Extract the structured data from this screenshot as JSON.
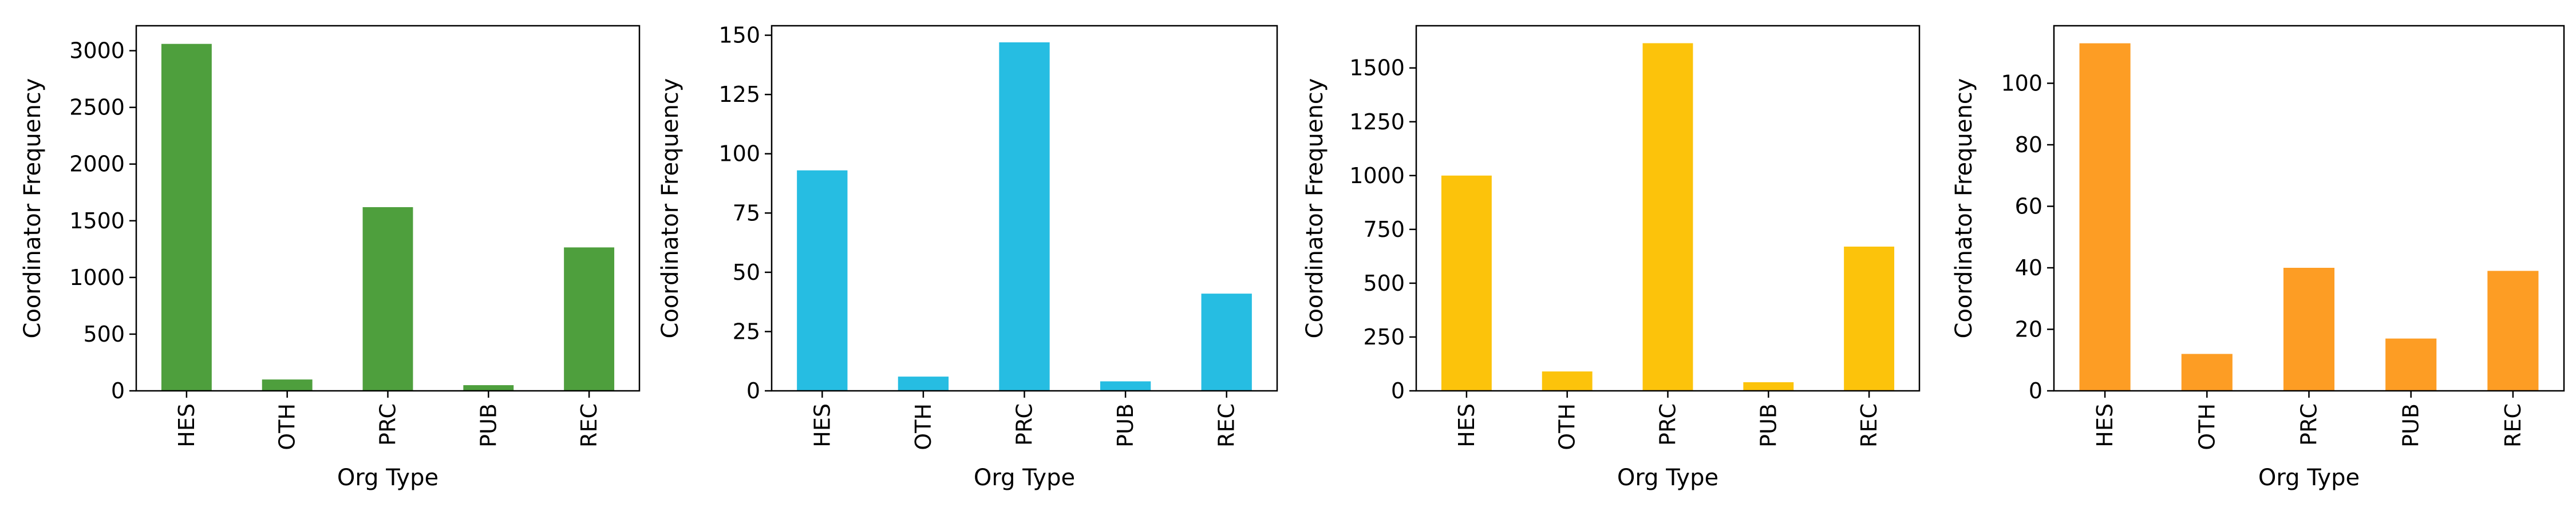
{
  "chart_data": [
    {
      "type": "bar",
      "categories": [
        "HES",
        "OTH",
        "PRC",
        "PUB",
        "REC"
      ],
      "values": [
        3060,
        100,
        1620,
        50,
        1265
      ],
      "xlabel": "Org Type",
      "ylabel": "Coordinator Frequency",
      "ylim": [
        0,
        3220
      ],
      "yticks": [
        0,
        500,
        1000,
        1500,
        2000,
        2500,
        3000
      ],
      "color": "#4e9f3d",
      "grid": false
    },
    {
      "type": "bar",
      "categories": [
        "HES",
        "OTH",
        "PRC",
        "PUB",
        "REC"
      ],
      "values": [
        93,
        6,
        147,
        4,
        41
      ],
      "xlabel": "Org Type",
      "ylabel": "Coordinator Frequency",
      "ylim": [
        0,
        154
      ],
      "yticks": [
        0,
        25,
        50,
        75,
        100,
        125,
        150
      ],
      "color": "#26bde2",
      "grid": false
    },
    {
      "type": "bar",
      "categories": [
        "HES",
        "OTH",
        "PRC",
        "PUB",
        "REC"
      ],
      "values": [
        1000,
        90,
        1615,
        40,
        670
      ],
      "xlabel": "Org Type",
      "ylabel": "Coordinator Frequency",
      "ylim": [
        0,
        1696
      ],
      "yticks": [
        0,
        250,
        500,
        750,
        1000,
        1250,
        1500
      ],
      "color": "#fcc30b",
      "grid": false
    },
    {
      "type": "bar",
      "categories": [
        "HES",
        "OTH",
        "PRC",
        "PUB",
        "REC"
      ],
      "values": [
        113,
        12,
        40,
        17,
        39
      ],
      "xlabel": "Org Type",
      "ylabel": "Coordinator Frequency",
      "ylim": [
        0,
        118.7
      ],
      "yticks": [
        0,
        20,
        40,
        60,
        80,
        100
      ],
      "color": "#fd9d24",
      "grid": false
    }
  ]
}
